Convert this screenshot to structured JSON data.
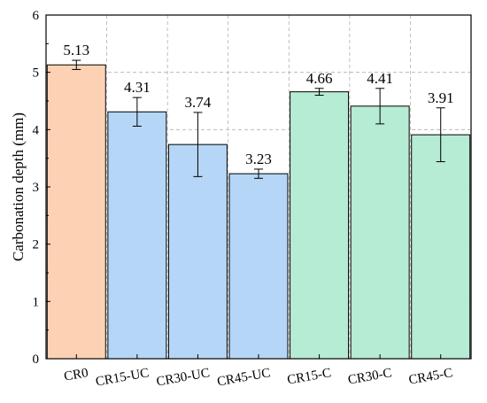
{
  "chart_data": {
    "type": "bar",
    "title": "",
    "xlabel": "",
    "ylabel": "Carbonation depth (mm)",
    "ylim": [
      0,
      6
    ],
    "yticks": [
      0,
      1,
      2,
      3,
      4,
      5,
      6
    ],
    "grid": true,
    "categories": [
      "CR0",
      "CR15-UC",
      "CR30-UC",
      "CR45-UC",
      "CR15-C",
      "CR30-C",
      "CR45-C"
    ],
    "values": [
      5.13,
      4.31,
      3.74,
      3.23,
      4.66,
      4.41,
      3.91
    ],
    "value_labels": [
      "5.13",
      "4.31",
      "3.74",
      "3.23",
      "4.66",
      "4.41",
      "3.91"
    ],
    "error": [
      0.08,
      0.25,
      0.56,
      0.08,
      0.06,
      0.31,
      0.47
    ],
    "colors": [
      "#FDD2B4",
      "#B5D6F6",
      "#B5D6F6",
      "#B5D6F6",
      "#B6EBD4",
      "#B6EBD4",
      "#B6EBD4"
    ],
    "bar_outline_color": "#000000",
    "grid_color": "#B0B0B0"
  }
}
